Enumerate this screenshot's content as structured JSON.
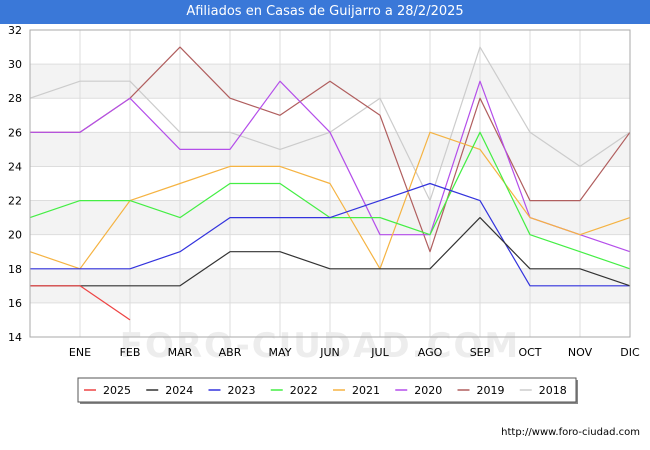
{
  "chart_data": {
    "type": "line",
    "title": "Afiliados en Casas de Guijarro a 28/2/2025",
    "xlabel": "",
    "ylabel": "",
    "categories": [
      "",
      "ENE",
      "FEB",
      "MAR",
      "ABR",
      "MAY",
      "JUN",
      "JUL",
      "AGO",
      "SEP",
      "OCT",
      "NOV",
      "DIC"
    ],
    "ylim": [
      14,
      32
    ],
    "yticks": [
      14,
      16,
      18,
      20,
      22,
      24,
      26,
      28,
      30,
      32
    ],
    "grid": true,
    "legend_position": "bottom",
    "series": [
      {
        "name": "2025",
        "color": "#ee4444",
        "values": [
          17,
          17,
          15,
          null,
          null,
          null,
          null,
          null,
          null,
          null,
          null,
          null,
          null
        ]
      },
      {
        "name": "2024",
        "color": "#333333",
        "values": [
          17,
          17,
          17,
          17,
          19,
          19,
          18,
          18,
          18,
          21,
          18,
          18,
          17
        ]
      },
      {
        "name": "2023",
        "color": "#3333dd",
        "values": [
          18,
          18,
          18,
          19,
          21,
          21,
          21,
          22,
          23,
          22,
          17,
          17,
          17
        ]
      },
      {
        "name": "2022",
        "color": "#44ee44",
        "values": [
          21,
          22,
          22,
          21,
          23,
          23,
          21,
          21,
          20,
          26,
          20,
          19,
          18
        ]
      },
      {
        "name": "2021",
        "color": "#f5b342",
        "values": [
          19,
          18,
          22,
          23,
          24,
          24,
          23,
          18,
          26,
          25,
          21,
          20,
          21
        ]
      },
      {
        "name": "2020",
        "color": "#b44eea",
        "values": [
          26,
          26,
          28,
          25,
          25,
          29,
          26,
          20,
          20,
          29,
          21,
          20,
          19
        ]
      },
      {
        "name": "2019",
        "color": "#b05e5e",
        "values": [
          26,
          26,
          28,
          31,
          28,
          27,
          29,
          27,
          19,
          28,
          22,
          22,
          26
        ]
      },
      {
        "name": "2018",
        "color": "#cccccc",
        "values": [
          28,
          29,
          29,
          26,
          26,
          25,
          26,
          28,
          22,
          31,
          26,
          24,
          26
        ]
      }
    ]
  },
  "watermark": "FORO-CIUDAD.COM",
  "footer_url": "http://www.foro-ciudad.com"
}
